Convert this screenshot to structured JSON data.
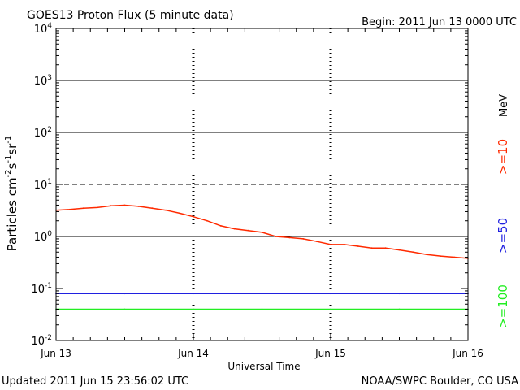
{
  "header": {
    "title": "GOES13 Proton Flux (5 minute data)",
    "begin": "Begin: 2011 Jun 13 0000 UTC"
  },
  "footer": {
    "updated": "Updated 2011 Jun 15 23:56:02 UTC",
    "credit": "NOAA/SWPC Boulder, CO USA"
  },
  "legend": {
    "unit": "MeV",
    "entries": [
      {
        "label": ">=10",
        "color": "#ff2a00"
      },
      {
        "label": ">=50",
        "color": "#2020e0"
      },
      {
        "label": ">=100",
        "color": "#22ee22"
      }
    ]
  },
  "chart_data": {
    "type": "line",
    "title": "GOES13 Proton Flux (5 minute data)",
    "xlabel": "Universal Time",
    "ylabel": "Particles cm-2s-1sr-1",
    "y_scale": "log",
    "ylim": [
      0.01,
      10000
    ],
    "y_ticks": [
      {
        "value": 0.01,
        "base": "10",
        "exp": "-2"
      },
      {
        "value": 0.1,
        "base": "10",
        "exp": "-1"
      },
      {
        "value": 1,
        "base": "10",
        "exp": "0"
      },
      {
        "value": 10,
        "base": "10",
        "exp": "1"
      },
      {
        "value": 100,
        "base": "10",
        "exp": "2"
      },
      {
        "value": 1000,
        "base": "10",
        "exp": "3"
      },
      {
        "value": 10000,
        "base": "10",
        "exp": "4"
      }
    ],
    "x_ticks": [
      {
        "value": 0,
        "label": "Jun 13"
      },
      {
        "value": 1,
        "label": "Jun 14"
      },
      {
        "value": 2,
        "label": "Jun 15"
      },
      {
        "value": 3,
        "label": "Jun 16"
      }
    ],
    "xlim": [
      0,
      3
    ],
    "thresholds": {
      "solid": [
        1,
        100,
        1000
      ],
      "dashed": [
        10
      ]
    },
    "series": [
      {
        "name": ">=10",
        "color": "#ff2a00",
        "x": [
          0.0,
          0.1,
          0.2,
          0.3,
          0.4,
          0.5,
          0.6,
          0.7,
          0.8,
          0.9,
          1.0,
          1.1,
          1.2,
          1.3,
          1.4,
          1.5,
          1.6,
          1.7,
          1.8,
          1.9,
          2.0,
          2.1,
          2.2,
          2.3,
          2.4,
          2.5,
          2.6,
          2.7,
          2.8,
          2.9,
          3.0
        ],
        "values": [
          3.2,
          3.3,
          3.5,
          3.6,
          3.9,
          4.0,
          3.8,
          3.5,
          3.2,
          2.8,
          2.4,
          2.0,
          1.6,
          1.4,
          1.3,
          1.2,
          1.0,
          0.95,
          0.9,
          0.8,
          0.7,
          0.7,
          0.65,
          0.6,
          0.6,
          0.55,
          0.5,
          0.45,
          0.42,
          0.4,
          0.38
        ]
      },
      {
        "name": ">=50",
        "color": "#2020e0",
        "x": [
          0.0,
          0.5,
          1.0,
          1.5,
          2.0,
          2.5,
          3.0
        ],
        "values": [
          0.08,
          0.08,
          0.08,
          0.08,
          0.08,
          0.08,
          0.08
        ]
      },
      {
        "name": ">=100",
        "color": "#22ee22",
        "x": [
          0.0,
          0.5,
          1.0,
          1.5,
          2.0,
          2.5,
          3.0
        ],
        "values": [
          0.04,
          0.04,
          0.04,
          0.04,
          0.04,
          0.04,
          0.04
        ]
      }
    ]
  }
}
